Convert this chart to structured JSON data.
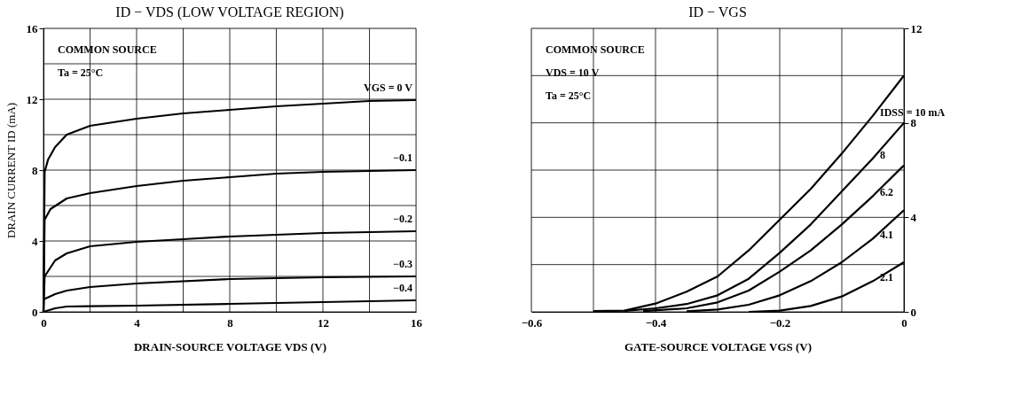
{
  "chart_data": [
    {
      "type": "line",
      "title": "ID − VDS   (LOW VOLTAGE REGION)",
      "xlabel": "DRAIN-SOURCE VOLTAGE   VDS   (V)",
      "ylabel": "DRAIN CURRENT   ID   (mA)",
      "xlim": [
        0,
        16
      ],
      "ylim": [
        0,
        16
      ],
      "xticks": [
        0,
        {
          "value": 2,
          "label": null
        },
        4,
        {
          "value": 6,
          "label": null
        },
        8,
        {
          "value": 10,
          "label": null
        },
        12,
        {
          "value": 14,
          "label": null
        },
        16
      ],
      "yticks": [
        0,
        {
          "value": 2,
          "label": null
        },
        4,
        {
          "value": 6,
          "label": null
        },
        8,
        {
          "value": 10,
          "label": null
        },
        12,
        {
          "value": 14,
          "label": null
        },
        16
      ],
      "grid": true,
      "legend": "right",
      "marker": "none",
      "line_style": "solid",
      "annotations": [
        "COMMON SOURCE",
        "Ta = 25°C"
      ],
      "series": [
        {
          "name": "VGS = 0 V",
          "color": "#000000",
          "x": [
            0,
            0.05,
            0.2,
            0.5,
            1,
            2,
            4,
            6,
            8,
            10,
            12,
            14,
            16
          ],
          "values": [
            0,
            7.9,
            8.6,
            9.3,
            10,
            10.5,
            10.9,
            11.2,
            11.4,
            11.6,
            11.75,
            11.9,
            11.95
          ]
        },
        {
          "name": "−0.1",
          "color": "#000000",
          "x": [
            0,
            0.05,
            0.3,
            1,
            2,
            4,
            6,
            8,
            10,
            12,
            16
          ],
          "values": [
            0,
            5.2,
            5.8,
            6.4,
            6.7,
            7.1,
            7.4,
            7.6,
            7.8,
            7.9,
            8.0
          ]
        },
        {
          "name": "−0.2",
          "color": "#000000",
          "x": [
            0,
            0.05,
            0.5,
            1,
            2,
            4,
            6,
            8,
            12,
            16
          ],
          "values": [
            0,
            2,
            2.9,
            3.3,
            3.7,
            3.95,
            4.1,
            4.25,
            4.45,
            4.55
          ]
        },
        {
          "name": "−0.3",
          "color": "#000000",
          "x": [
            0,
            0.5,
            1,
            2,
            4,
            8,
            12,
            16
          ],
          "values": [
            0.7,
            1.0,
            1.2,
            1.4,
            1.6,
            1.85,
            1.95,
            2.0
          ]
        },
        {
          "name": "−0.4",
          "color": "#000000",
          "x": [
            0,
            0.5,
            1,
            2,
            4,
            8,
            12,
            16
          ],
          "values": [
            0,
            0.2,
            0.3,
            0.32,
            0.35,
            0.45,
            0.55,
            0.65
          ]
        }
      ]
    },
    {
      "type": "line",
      "title": "ID − VGS",
      "xlabel": "GATE-SOURCE VOLTAGE   VGS   (V)",
      "xlim": [
        -0.6,
        0
      ],
      "ylim": [
        0,
        12
      ],
      "xticks": [
        {
          "value": -0.6,
          "label": "−0.6"
        },
        {
          "value": -0.5,
          "label": null
        },
        {
          "value": -0.4,
          "label": "−0.4"
        },
        {
          "value": -0.3,
          "label": null
        },
        {
          "value": -0.2,
          "label": "−0.2"
        },
        {
          "value": -0.1,
          "label": null
        },
        0
      ],
      "yticks": [
        0,
        {
          "value": 2,
          "label": null
        },
        4,
        {
          "value": 6,
          "label": null
        },
        8,
        {
          "value": 10,
          "label": null
        },
        12
      ],
      "grid": true,
      "legend": false,
      "marker": "none",
      "line_style": "solid",
      "annotations": [
        "COMMON SOURCE",
        "VDS = 10 V",
        "Ta = 25°C"
      ],
      "series": [
        {
          "name": "IDSS = 10 mA",
          "color": "#000000",
          "x": [
            -0.5,
            -0.45,
            -0.4,
            -0.35,
            -0.3,
            -0.25,
            -0.2,
            -0.15,
            -0.1,
            -0.05,
            0
          ],
          "values": [
            0.03,
            0.05,
            0.35,
            0.85,
            1.5,
            2.6,
            3.9,
            5.2,
            6.7,
            8.3,
            10
          ]
        },
        {
          "name": "8",
          "color": "#000000",
          "x": [
            -0.45,
            -0.4,
            -0.35,
            -0.3,
            -0.25,
            -0.2,
            -0.15,
            -0.1,
            -0.05,
            0
          ],
          "values": [
            0.04,
            0.15,
            0.33,
            0.7,
            1.4,
            2.5,
            3.7,
            5.1,
            6.5,
            8
          ]
        },
        {
          "name": "6.2",
          "color": "#000000",
          "x": [
            -0.42,
            -0.35,
            -0.3,
            -0.25,
            -0.2,
            -0.15,
            -0.1,
            -0.05,
            0
          ],
          "values": [
            0.03,
            0.15,
            0.4,
            0.9,
            1.7,
            2.6,
            3.7,
            4.9,
            6.2
          ]
        },
        {
          "name": "4.1",
          "color": "#000000",
          "x": [
            -0.35,
            -0.3,
            -0.25,
            -0.2,
            -0.15,
            -0.1,
            -0.05,
            0
          ],
          "values": [
            0.02,
            0.1,
            0.3,
            0.7,
            1.3,
            2.1,
            3.1,
            4.3
          ]
        },
        {
          "name": "2.1",
          "color": "#000000",
          "x": [
            -0.25,
            -0.2,
            -0.15,
            -0.1,
            -0.05,
            0
          ],
          "values": [
            0,
            0.05,
            0.25,
            0.65,
            1.3,
            2.1
          ]
        }
      ]
    }
  ]
}
